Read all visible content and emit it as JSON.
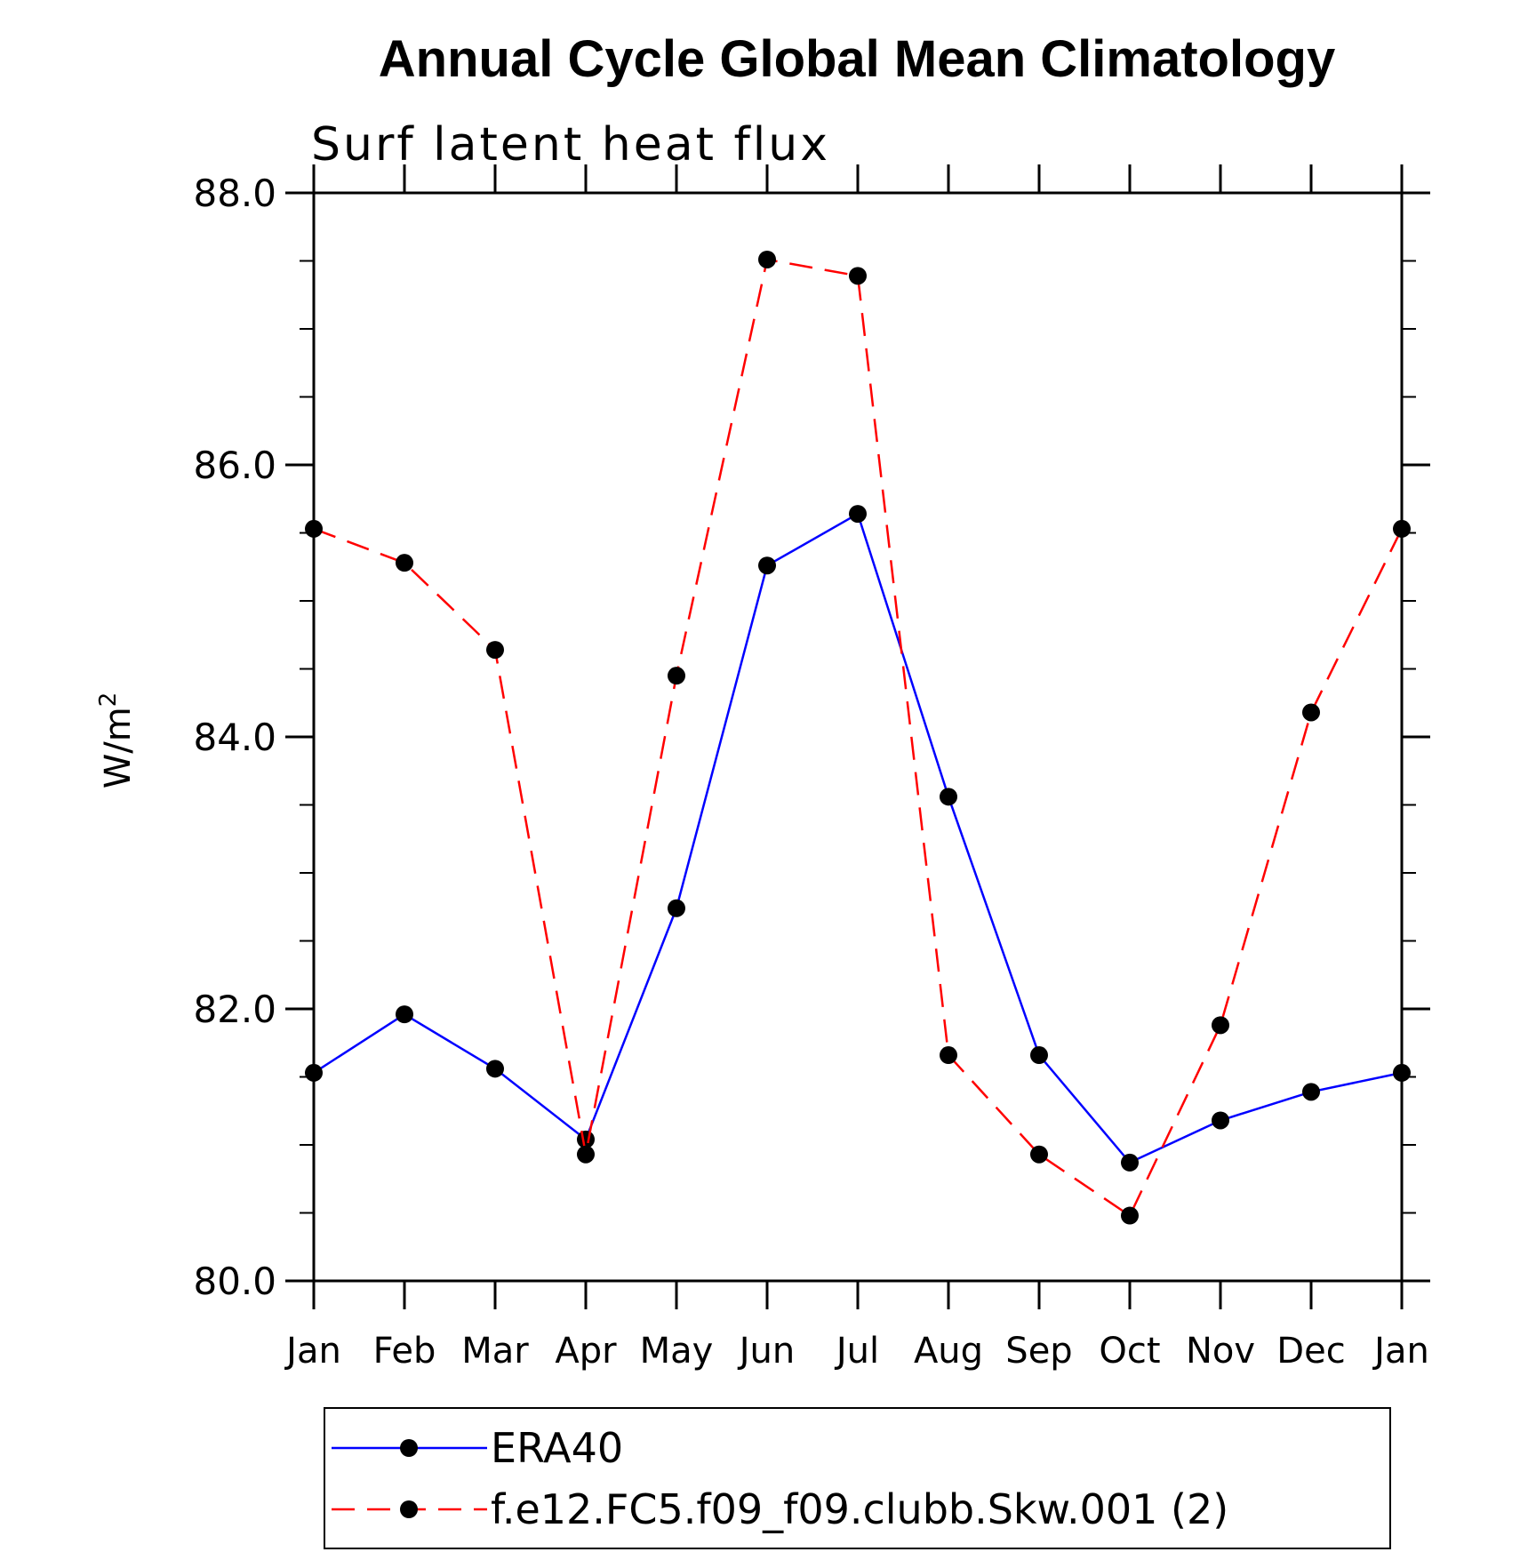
{
  "chart_data": {
    "type": "line",
    "title": "Annual Cycle Global Mean Climatology",
    "subtitle": "Surf latent heat flux",
    "ylabel": "W/m",
    "ylabel_superscript": "2",
    "xlabel": "",
    "categories": [
      "Jan",
      "Feb",
      "Mar",
      "Apr",
      "May",
      "Jun",
      "Jul",
      "Aug",
      "Sep",
      "Oct",
      "Nov",
      "Dec",
      "Jan"
    ],
    "ylim": [
      80.0,
      88.0
    ],
    "yticks": [
      80.0,
      82.0,
      84.0,
      86.0,
      88.0
    ],
    "ytick_labels": [
      "80.0",
      "82.0",
      "84.0",
      "86.0",
      "88.0"
    ],
    "y_minor_step": 0.5,
    "grid": false,
    "legend_position": "bottom",
    "series": [
      {
        "name": "ERA40",
        "color": "#0000ff",
        "line_style": "solid",
        "values": [
          81.53,
          81.96,
          81.56,
          81.04,
          82.74,
          85.26,
          85.64,
          83.56,
          81.66,
          80.87,
          81.18,
          81.39,
          81.53
        ]
      },
      {
        "name": "f.e12.FC5.f09_f09.clubb.Skw.001 (2)",
        "color": "#ff0000",
        "line_style": "dashed",
        "values": [
          85.53,
          85.28,
          84.64,
          80.93,
          84.45,
          87.51,
          87.39,
          81.66,
          80.93,
          80.48,
          81.88,
          84.18,
          85.53
        ]
      }
    ]
  }
}
